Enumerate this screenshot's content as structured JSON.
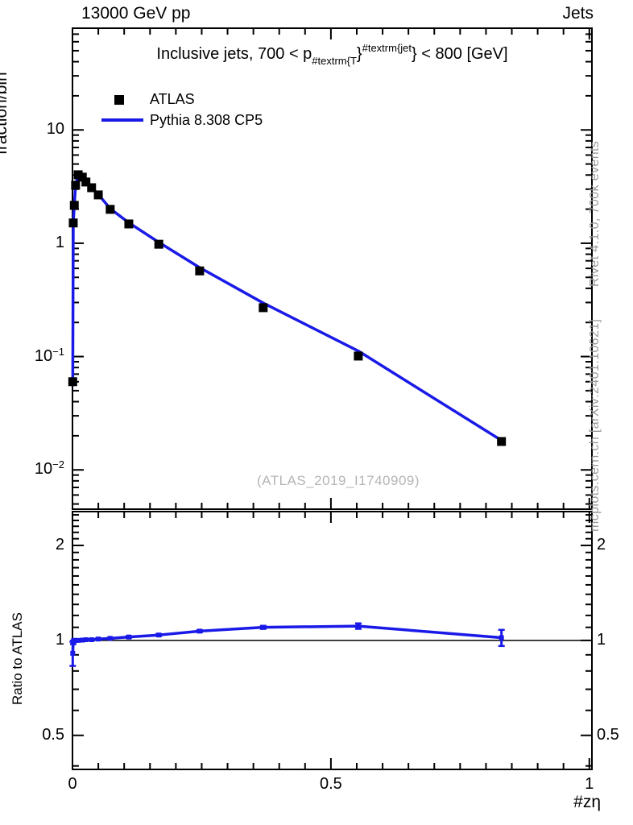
{
  "header": {
    "left": "13000 GeV pp",
    "right": "Jets"
  },
  "panel_title_parts": [
    {
      "t": "Inclusive jets, 700 < p",
      "pos": "base"
    },
    {
      "t": "#textrm{T",
      "pos": "sub"
    },
    {
      "t": "}",
      "pos": "base"
    },
    {
      "t": "#textrm{jet",
      "pos": "sup"
    },
    {
      "t": "}",
      "pos": "base"
    },
    {
      "t": " < 800 [GeV]",
      "pos": "base"
    }
  ],
  "legend": [
    {
      "marker": "square",
      "label": "ATLAS"
    },
    {
      "marker": "line",
      "label": "Pythia 8.308 CP5"
    }
  ],
  "axes": {
    "main_y_label": "fraction/bin",
    "ratio_y_label": "Ratio to ATLAS",
    "x_label": "#zη",
    "main_y_ticks": [
      {
        "v": 10,
        "m": "10",
        "e": ""
      },
      {
        "v": 1,
        "m": "1",
        "e": ""
      },
      {
        "v": 0.1,
        "m": "10",
        "e": "−1"
      },
      {
        "v": 0.01,
        "m": "10",
        "e": "−2"
      }
    ],
    "ratio_y_ticks": [
      {
        "v": 2,
        "label": "2"
      },
      {
        "v": 1,
        "label": "1"
      },
      {
        "v": 0.5,
        "label": "0.5"
      }
    ],
    "x_ticks": [
      {
        "v": 0,
        "label": "0"
      },
      {
        "v": 0.5,
        "label": "0.5"
      },
      {
        "v": 1,
        "label": "1"
      }
    ]
  },
  "side_notes": {
    "top_right": "Rivet 4.1.0,  700k events",
    "bottom_right": "mcplots.cern.ch [arXiv:2401.10621]"
  },
  "watermark": "(ATLAS_2019_I1740909)",
  "colors": {
    "pythia_blue": "#1a1ae8",
    "atlas_black": "#000000",
    "gray_text": "#9a9a9a",
    "watermark_gray": "#b5b5b5"
  },
  "chart_data": {
    "type": "line",
    "title": "Inclusive jets, 700 < p_T^jet < 800 [GeV]",
    "xlabel": "#zη",
    "ylabel_main": "fraction/bin",
    "ylabel_ratio": "Ratio to ATLAS",
    "x_scale": "linear",
    "y_scale_main": "log",
    "y_scale_ratio": "log",
    "xlim": [
      0,
      1.005
    ],
    "ylim_main": [
      0.0045,
      79
    ],
    "ylim_ratio": [
      0.39,
      2.56
    ],
    "x": [
      0.0005,
      0.0015,
      0.0035,
      0.006,
      0.011,
      0.019,
      0.026,
      0.037,
      0.05,
      0.073,
      0.109,
      0.167,
      0.246,
      0.369,
      0.553,
      0.83
    ],
    "series": [
      {
        "name": "ATLAS",
        "type": "scatter",
        "values": [
          0.06,
          1.51,
          2.16,
          3.25,
          4.02,
          3.83,
          3.47,
          3.09,
          2.67,
          1.99,
          1.48,
          0.98,
          0.57,
          0.27,
          0.101,
          0.0178
        ]
      },
      {
        "name": "Pythia 8.308 CP5",
        "type": "line",
        "values": [
          0.0546,
          1.487,
          2.16,
          3.25,
          4.02,
          3.838,
          3.487,
          3.105,
          2.697,
          2.02,
          1.517,
          1.019,
          0.61,
          0.297,
          0.112,
          0.0182
        ]
      }
    ],
    "ratio": {
      "name": "Pythia / ATLAS",
      "values": [
        0.91,
        0.985,
        1.0,
        1.0,
        1.0,
        1.002,
        1.005,
        1.005,
        1.01,
        1.015,
        1.025,
        1.04,
        1.07,
        1.1,
        1.11,
        1.02
      ],
      "errors": [
        0.08,
        0.012,
        0.008,
        0.006,
        0.005,
        0.005,
        0.005,
        0.005,
        0.005,
        0.005,
        0.006,
        0.007,
        0.008,
        0.012,
        0.022,
        0.06
      ]
    },
    "legend_position": "top-left",
    "grid": false
  }
}
